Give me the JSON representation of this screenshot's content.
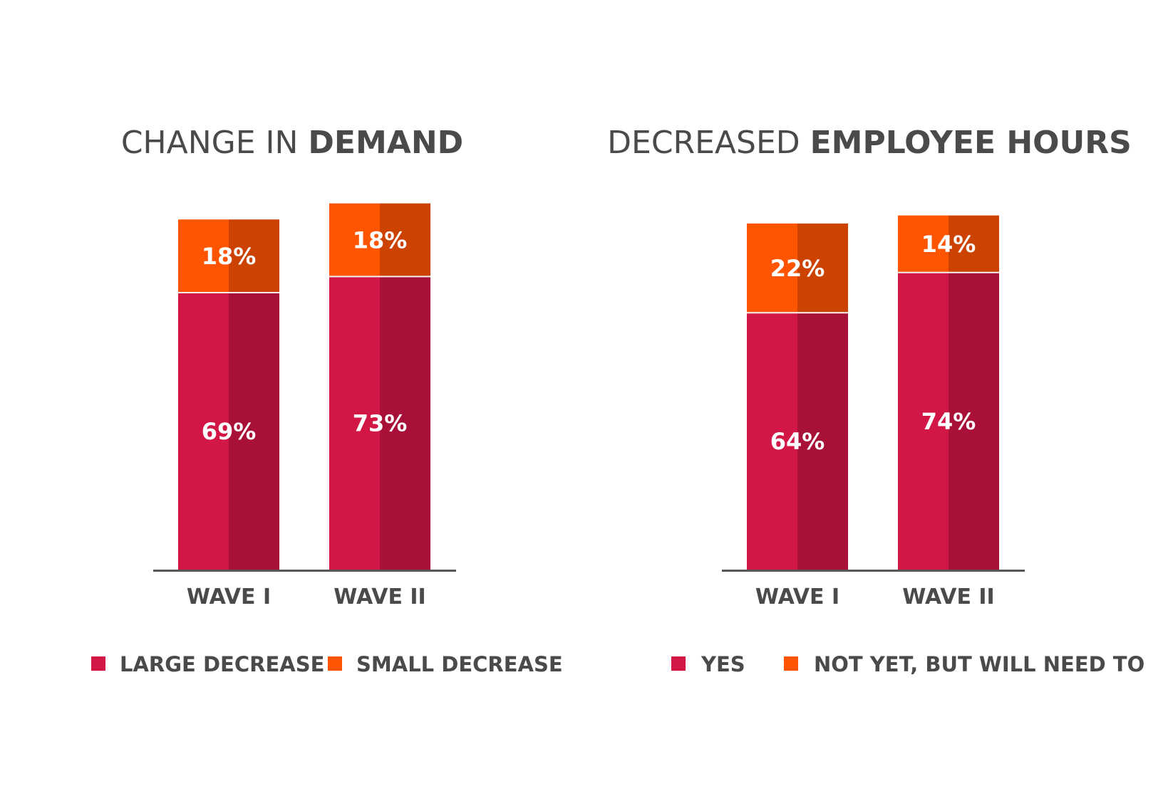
{
  "colors": {
    "primary_light": "#D21645",
    "primary_dark": "#A81038",
    "secondary_light": "#FF5500",
    "secondary_dark": "#CC4200",
    "text": "#4A4A4A",
    "axis": "#555555",
    "label": "#ffffff"
  },
  "chart_data": [
    {
      "type": "bar",
      "stacked": true,
      "title_light": "CHANGE IN ",
      "title_bold": "DEMAND",
      "categories": [
        "WAVE I",
        "WAVE II"
      ],
      "series": [
        {
          "name": "LARGE DECREASE",
          "values": [
            69,
            73
          ],
          "labels": [
            "69%",
            "73%"
          ]
        },
        {
          "name": "SMALL DECREASE",
          "values": [
            18,
            18
          ],
          "labels": [
            "18%",
            "18%"
          ]
        }
      ],
      "ylim": [
        0,
        92
      ],
      "grid": false,
      "legend": "bottom"
    },
    {
      "type": "bar",
      "stacked": true,
      "title_light": "DECREASED ",
      "title_bold": "EMPLOYEE HOURS",
      "categories": [
        "WAVE I",
        "WAVE II"
      ],
      "series": [
        {
          "name": "YES",
          "values": [
            64,
            74
          ],
          "labels": [
            "64%",
            "74%"
          ]
        },
        {
          "name": "NOT YET, BUT WILL NEED TO",
          "values": [
            22,
            14
          ],
          "labels": [
            "22%",
            "14%"
          ]
        }
      ],
      "ylim": [
        0,
        92
      ],
      "grid": false,
      "legend": "bottom"
    }
  ]
}
